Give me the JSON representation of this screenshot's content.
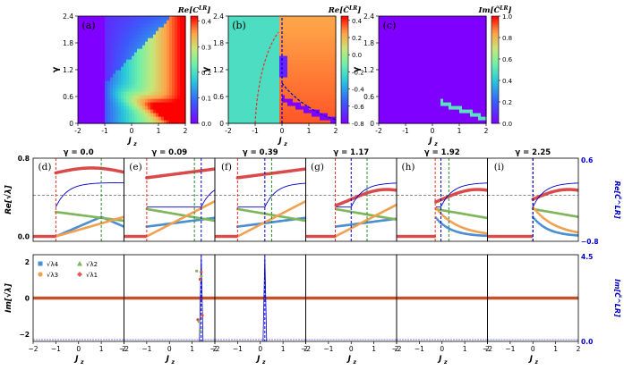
{
  "top_panels": [
    {
      "tag": "(a)",
      "title": "Re[C^LR]",
      "title_main": "Re[C",
      "title_sup": "LR",
      "title_end": "]",
      "xlabel": "J",
      "xlabel_sub": "z",
      "ylabel": "γ",
      "x_ticks": [
        "-2",
        "-1",
        "0",
        "1",
        "2"
      ],
      "y_ticks": [
        "0",
        "0.6",
        "1.2",
        "1.8",
        "2.4"
      ],
      "colorbar_ticks": [
        "0.0",
        "0.1",
        "0.2",
        "0.3",
        "0.4"
      ],
      "colormap": "rainbow"
    },
    {
      "tag": "(b)",
      "title": "Re[C̃^LR]",
      "title_main": "Re[C̃",
      "title_sup": "LR",
      "title_end": "]",
      "xlabel": "J",
      "xlabel_sub": "z",
      "ylabel": "γ",
      "x_ticks": [
        "-2",
        "-1",
        "0",
        "1",
        "2"
      ],
      "y_ticks": [
        "0",
        "0.6",
        "1.2",
        "1.8",
        "2.4"
      ],
      "colorbar_ticks": [
        "-0.8",
        "-0.6",
        "-0.4",
        "-0.2",
        "0.0",
        "0.2",
        "0.4"
      ],
      "colormap": "rainbow"
    },
    {
      "tag": "(c)",
      "title": "Im[C̃^LR]",
      "title_main": "Im[C̃",
      "title_sup": "LR",
      "title_end": "]",
      "xlabel": "J",
      "xlabel_sub": "z",
      "ylabel": "γ",
      "x_ticks": [
        "-2",
        "-1",
        "0",
        "1",
        "2"
      ],
      "y_ticks": [
        "0",
        "0.6",
        "1.2",
        "1.8",
        "2.4"
      ],
      "colorbar_ticks": [
        "0.0",
        "0.2",
        "0.4",
        "0.6",
        "0.8",
        "1.0"
      ],
      "colormap": "rainbow"
    }
  ],
  "bottom": {
    "panels": [
      {
        "tag": "(d)",
        "gamma_label": "γ = 0.0"
      },
      {
        "tag": "(e)",
        "gamma_label": "γ = 0.09"
      },
      {
        "tag": "(f)",
        "gamma_label": "γ = 0.39"
      },
      {
        "tag": "(g)",
        "gamma_label": "γ = 1.17"
      },
      {
        "tag": "(h)",
        "gamma_label": "γ = 1.92"
      },
      {
        "tag": "(i)",
        "gamma_label": "γ = 2.25"
      }
    ],
    "x_ticks": [
      "−2",
      "−1",
      "0",
      "1",
      "2"
    ],
    "xlabel": "J",
    "xlabel_sub": "z",
    "upper_ylabel": "Re[√λ]",
    "lower_ylabel": "Im[√λ]",
    "upper_left_ticks": [
      "0.0",
      "0.8"
    ],
    "lower_left_ticks": [
      "−2",
      "0",
      "2"
    ],
    "right_upper_label": "Re[C̃^LR]",
    "right_lower_label": "Im[C̃^LR]",
    "right_upper_ticks": [
      "0.6",
      "−0.8"
    ],
    "right_lower_ticks": [
      "4.5",
      "0.0"
    ],
    "legend": [
      {
        "label": "√λ4",
        "color": "#4a8fd1",
        "marker": "square"
      },
      {
        "label": "√λ3",
        "color": "#f0a050",
        "marker": "circle"
      },
      {
        "label": "√λ2",
        "color": "#7fb65a",
        "marker": "triangle"
      },
      {
        "label": "√λ1",
        "color": "#e05a5a",
        "marker": "diamond"
      }
    ],
    "colors": {
      "lambda4": "#4a8fd1",
      "lambda3": "#f0a050",
      "lambda2": "#7fb65a",
      "lambda1": "#d94b4b",
      "curve": "#0000cc",
      "vline_red": "#e8302a",
      "vline_green": "#2a8a2a",
      "vline_blue": "#0000cc"
    }
  },
  "chart_data": [
    {
      "type": "heatmap",
      "title": "Re[C^LR]",
      "xlabel": "Jz",
      "ylabel": "γ",
      "xlim": [
        -2,
        2
      ],
      "ylim": [
        0,
        2.4
      ],
      "zlim": [
        0,
        0.42
      ]
    },
    {
      "type": "heatmap",
      "title": "Re[C̃^LR]",
      "xlabel": "Jz",
      "ylabel": "γ",
      "xlim": [
        -2,
        2
      ],
      "ylim": [
        0,
        2.4
      ],
      "zlim": [
        -0.8,
        0.45
      ]
    },
    {
      "type": "heatmap",
      "title": "Im[C̃^LR]",
      "xlabel": "Jz",
      "ylabel": "γ",
      "xlim": [
        -2,
        2
      ],
      "ylim": [
        0,
        2.4
      ],
      "zlim": [
        0,
        1.0
      ]
    },
    {
      "type": "line",
      "panels": [
        "γ = 0.0",
        "γ = 0.09",
        "γ = 0.39",
        "γ = 1.17",
        "γ = 1.92",
        "γ = 2.25"
      ],
      "xlim": [
        -2,
        2
      ],
      "upper_ylim": [
        -0.05,
        0.8
      ],
      "lower_ylim": [
        -2.4,
        2.4
      ],
      "right_upper_ylim": [
        -0.8,
        0.6
      ],
      "right_lower_ylim": [
        0,
        4.5
      ]
    }
  ]
}
